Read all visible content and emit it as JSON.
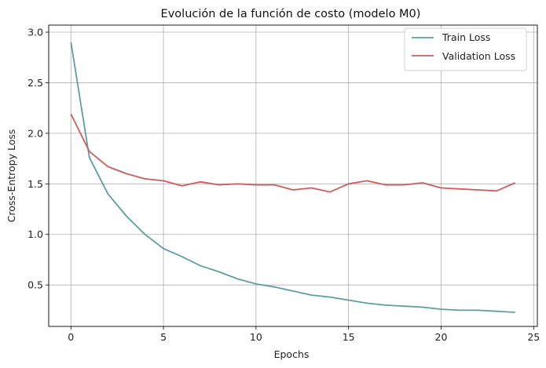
{
  "chart_data": {
    "type": "line",
    "title": "Evolución de la función de costo (modelo M0)",
    "xlabel": "Epochs",
    "ylabel": "Cross-Entropy Loss",
    "xlim": [
      -1.2,
      25.2
    ],
    "ylim": [
      0.09,
      3.07
    ],
    "xticks": [
      0,
      5,
      10,
      15,
      20,
      25
    ],
    "yticks": [
      0.5,
      1.0,
      1.5,
      2.0,
      2.5,
      3.0
    ],
    "xtick_labels": [
      "0",
      "5",
      "10",
      "15",
      "20",
      "25"
    ],
    "ytick_labels": [
      "0.5",
      "1.0",
      "1.5",
      "2.0",
      "2.5",
      "3.0"
    ],
    "grid": true,
    "legend_position": "top-right",
    "x": [
      0,
      1,
      2,
      3,
      4,
      5,
      6,
      7,
      8,
      9,
      10,
      11,
      12,
      13,
      14,
      15,
      16,
      17,
      18,
      19,
      20,
      21,
      22,
      23,
      24
    ],
    "series": [
      {
        "name": "Train Loss",
        "color": "#5f9ea0",
        "values": [
          2.9,
          1.76,
          1.4,
          1.18,
          1.0,
          0.86,
          0.78,
          0.69,
          0.63,
          0.56,
          0.51,
          0.48,
          0.44,
          0.4,
          0.38,
          0.35,
          0.32,
          0.3,
          0.29,
          0.28,
          0.26,
          0.25,
          0.25,
          0.24,
          0.23
        ]
      },
      {
        "name": "Validation Loss",
        "color": "#cd5c5c",
        "values": [
          2.19,
          1.82,
          1.67,
          1.6,
          1.55,
          1.53,
          1.48,
          1.52,
          1.49,
          1.5,
          1.49,
          1.49,
          1.44,
          1.46,
          1.42,
          1.5,
          1.53,
          1.49,
          1.49,
          1.51,
          1.46,
          1.45,
          1.44,
          1.43,
          1.51
        ]
      }
    ]
  }
}
